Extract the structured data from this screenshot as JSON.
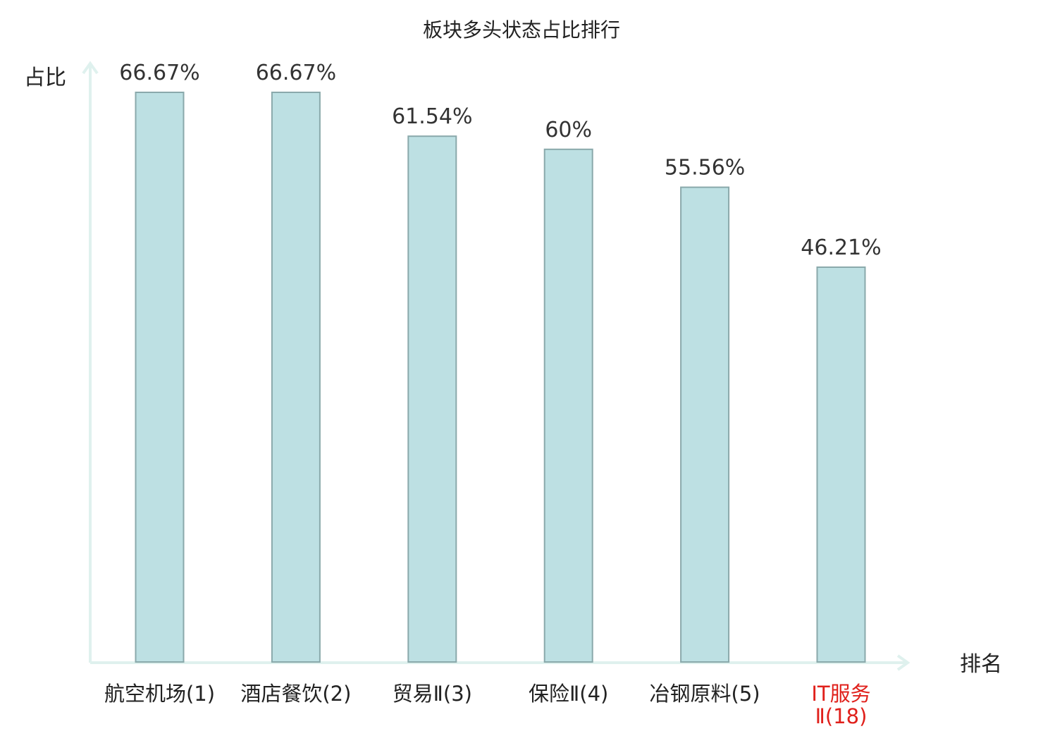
{
  "chart_data": {
    "type": "bar",
    "title": "板块多头状态占比排行",
    "xlabel": "排名",
    "ylabel": "占比",
    "categories": [
      "航空机场(1)",
      "酒店餐饮(2)",
      "贸易Ⅱ(3)",
      "保险Ⅱ(4)",
      "冶钢原料(5)",
      "IT服务Ⅱ(18)"
    ],
    "values": [
      66.67,
      66.67,
      61.54,
      60,
      55.56,
      46.21
    ],
    "value_labels": [
      "66.67%",
      "66.67%",
      "61.54%",
      "60%",
      "55.56%",
      "46.21%"
    ],
    "unit": "%",
    "ylim": [
      0,
      70
    ],
    "grid": false,
    "legend": "none",
    "highlight_index": 5
  },
  "colors": {
    "bar_fill": "#bde0e3",
    "bar_stroke": "#8aa9ab",
    "axis": "#dff1ee",
    "text": "#333333",
    "label": "#222222",
    "highlight": "#e0201b"
  }
}
